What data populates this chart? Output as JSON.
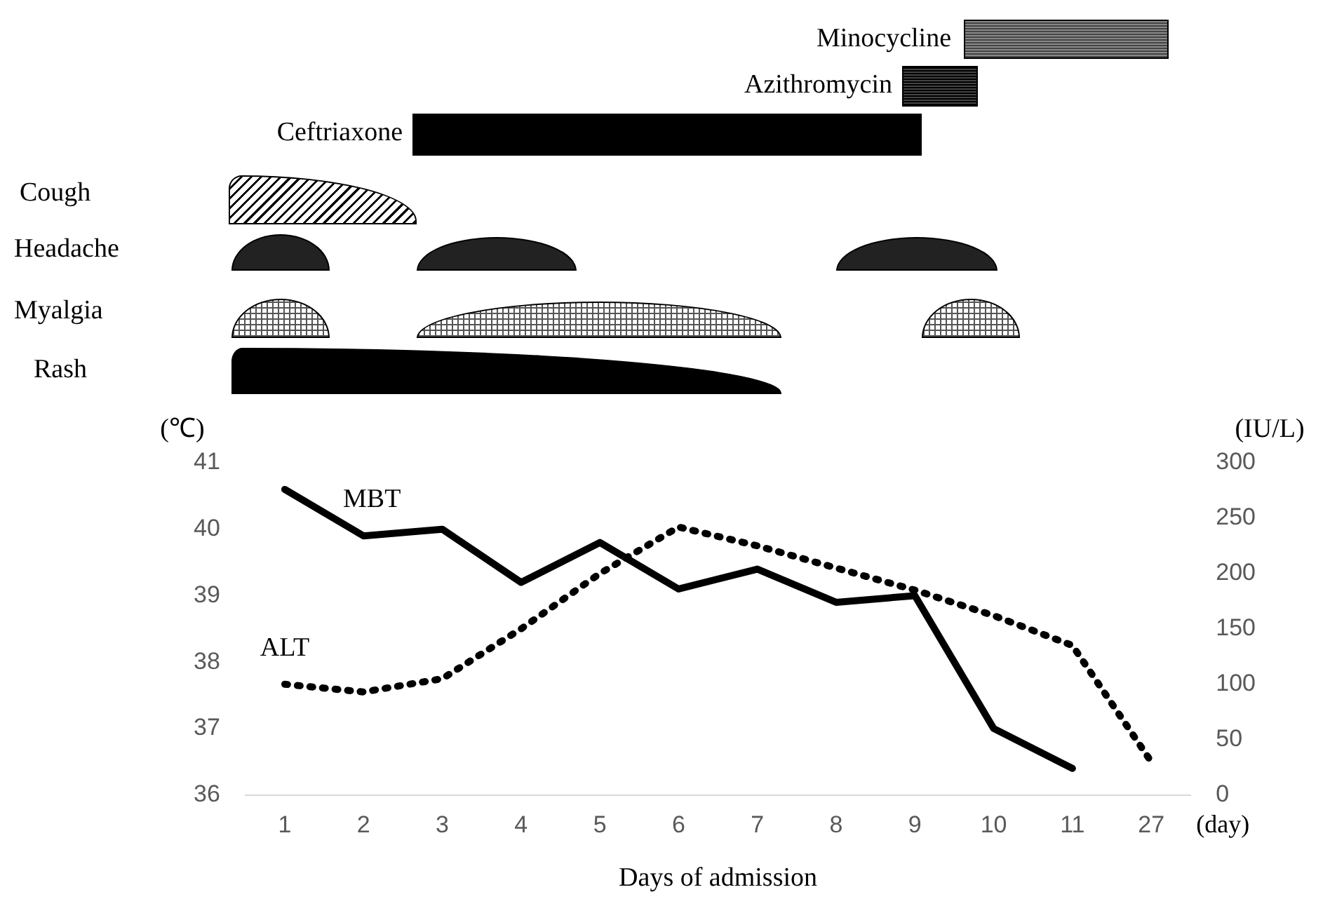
{
  "chart_data": {
    "type": "line",
    "xlabel": "Days of admission",
    "ylabel": "(℃)",
    "y2label": "(IU/L)",
    "categories": [
      "1",
      "2",
      "3",
      "4",
      "5",
      "6",
      "7",
      "8",
      "9",
      "10",
      "11",
      "27"
    ],
    "series": [
      {
        "name": "MBT",
        "color": "#000000",
        "line_style": "solid",
        "values": [
          40.6,
          39.9,
          40.0,
          39.2,
          39.8,
          39.1,
          39.4,
          38.9,
          39.0,
          37.0,
          36.4,
          null
        ]
      },
      {
        "name": "ALT",
        "color": "#000000",
        "line_style": "dotted",
        "axis": "y2",
        "values": [
          100,
          93,
          105,
          150,
          200,
          242,
          225,
          205,
          185,
          162,
          135,
          30
        ]
      }
    ],
    "ylim": [
      36,
      41
    ],
    "yticks": [
      36,
      37,
      38,
      39,
      40,
      41
    ],
    "y2lim": [
      0,
      300
    ],
    "y2ticks": [
      0,
      50,
      100,
      150,
      200,
      250,
      300
    ],
    "grid": false,
    "legend": false,
    "marker": "none",
    "annotations": [
      "Minocycline",
      "Azithromycin",
      "Ceftriaxone",
      "Cough",
      "Headache",
      "Myalgia",
      "Rash",
      "(day)"
    ]
  }
}
